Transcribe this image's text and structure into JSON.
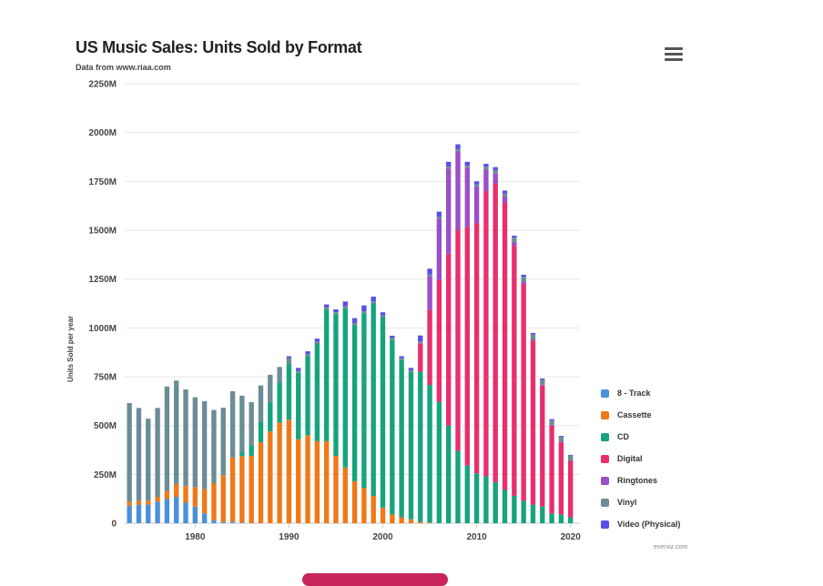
{
  "title": "US Music Sales: Units Sold by Format",
  "subtitle": "Data from www.riaa.com",
  "credit": "everviz.com",
  "menu": {
    "icon": "hamburger-menu-icon"
  },
  "chart_data": {
    "type": "bar",
    "stacked": true,
    "ylabel": "Units Sold per year",
    "ylim": [
      0,
      2250
    ],
    "y_ticks": [
      0,
      250,
      500,
      750,
      1000,
      1250,
      1500,
      1750,
      2000,
      2250
    ],
    "y_tick_labels": [
      "0",
      "250M",
      "500M",
      "750M",
      "1000M",
      "1250M",
      "1500M",
      "1750M",
      "2000M",
      "2250M"
    ],
    "x_ticks": [
      1980,
      1990,
      2000,
      2010,
      2020
    ],
    "xlim": [
      1972.5,
      2021
    ],
    "legend_position": "bottom-right",
    "grid": "horizontal",
    "x": [
      1973,
      1974,
      1975,
      1976,
      1977,
      1978,
      1979,
      1980,
      1981,
      1982,
      1983,
      1984,
      1985,
      1986,
      1987,
      1988,
      1989,
      1990,
      1991,
      1992,
      1993,
      1994,
      1995,
      1996,
      1997,
      1998,
      1999,
      2000,
      2001,
      2002,
      2003,
      2004,
      2005,
      2006,
      2007,
      2008,
      2009,
      2010,
      2011,
      2012,
      2013,
      2014,
      2015,
      2016,
      2017,
      2018,
      2019,
      2020
    ],
    "series": [
      {
        "name": "8 - Track",
        "color": "#4a90d9",
        "values": [
          90,
          95,
          95,
          110,
          125,
          135,
          105,
          85,
          50,
          15,
          6,
          6,
          3,
          0,
          0,
          0,
          0,
          0,
          0,
          0,
          0,
          0,
          0,
          0,
          0,
          0,
          0,
          0,
          0,
          0,
          0,
          0,
          0,
          0,
          0,
          0,
          0,
          0,
          0,
          0,
          0,
          0,
          0,
          0,
          0,
          0,
          0,
          0
        ]
      },
      {
        "name": "Cassette",
        "color": "#f07818",
        "values": [
          20,
          20,
          20,
          25,
          40,
          65,
          85,
          100,
          125,
          190,
          240,
          330,
          340,
          345,
          415,
          470,
          515,
          530,
          430,
          450,
          420,
          420,
          345,
          285,
          215,
          180,
          140,
          80,
          45,
          30,
          20,
          6,
          3,
          0,
          0,
          0,
          0,
          0,
          0,
          0,
          0,
          0,
          0,
          0,
          0,
          0,
          0,
          0
        ]
      },
      {
        "name": "CD",
        "color": "#16a37e",
        "values": [
          0,
          0,
          0,
          0,
          0,
          0,
          0,
          0,
          0,
          0,
          0,
          0,
          20,
          55,
          105,
          150,
          205,
          285,
          340,
          405,
          500,
          675,
          725,
          815,
          800,
          895,
          985,
          975,
          895,
          805,
          755,
          770,
          705,
          620,
          500,
          370,
          295,
          255,
          240,
          210,
          170,
          140,
          115,
          95,
          85,
          50,
          45,
          30
        ]
      },
      {
        "name": "Digital",
        "color": "#e82f6c",
        "values": [
          0,
          0,
          0,
          0,
          0,
          0,
          0,
          0,
          0,
          0,
          0,
          0,
          0,
          0,
          0,
          0,
          0,
          0,
          0,
          0,
          0,
          0,
          0,
          0,
          0,
          0,
          0,
          0,
          0,
          0,
          0,
          145,
          385,
          625,
          880,
          1130,
          1220,
          1280,
          1460,
          1530,
          1470,
          1280,
          1110,
          840,
          620,
          450,
          370,
          290
        ]
      },
      {
        "name": "Ringtones",
        "color": "#9b4fc8",
        "values": [
          0,
          0,
          0,
          0,
          0,
          0,
          0,
          0,
          0,
          0,
          0,
          0,
          0,
          0,
          0,
          0,
          0,
          0,
          0,
          0,
          0,
          0,
          0,
          0,
          0,
          0,
          0,
          0,
          0,
          0,
          0,
          0,
          170,
          315,
          435,
          405,
          305,
          190,
          110,
          50,
          30,
          20,
          12,
          6,
          4,
          2,
          1,
          1
        ]
      },
      {
        "name": "Vinyl",
        "color": "#6b8c96",
        "values": [
          505,
          475,
          420,
          455,
          535,
          530,
          495,
          460,
          450,
          375,
          345,
          340,
          290,
          220,
          185,
          140,
          80,
          30,
          10,
          10,
          10,
          10,
          10,
          10,
          10,
          10,
          10,
          10,
          10,
          10,
          10,
          10,
          10,
          10,
          10,
          10,
          10,
          10,
          15,
          18,
          18,
          22,
          25,
          25,
          25,
          25,
          26,
          27
        ]
      },
      {
        "name": "Video (Physical)",
        "color": "#5a4ee8",
        "values": [
          0,
          0,
          0,
          0,
          0,
          0,
          0,
          0,
          0,
          0,
          0,
          0,
          0,
          0,
          0,
          0,
          0,
          10,
          15,
          15,
          15,
          15,
          15,
          25,
          25,
          30,
          25,
          15,
          10,
          10,
          10,
          30,
          30,
          25,
          25,
          25,
          20,
          15,
          15,
          15,
          15,
          10,
          10,
          8,
          7,
          6,
          5,
          2
        ]
      }
    ]
  }
}
